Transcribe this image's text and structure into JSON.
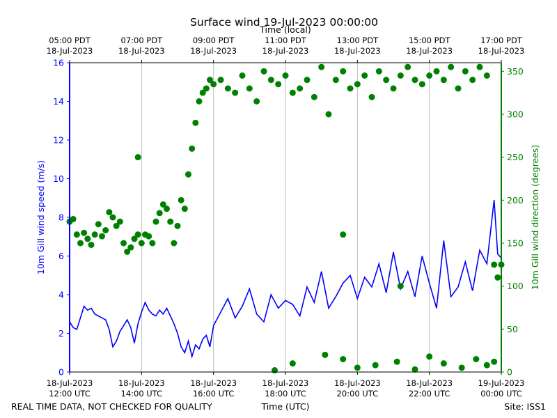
{
  "chart_data": {
    "type": "line",
    "title": "Surface wind 19-Jul-2023 00:00:00",
    "top_axis_label": "Time (local)",
    "xlabel": "Time (UTC)",
    "ylabel_left": "10m Gill wind speed (m/s)",
    "ylabel_right": "10m Gill wind direction (degrees)",
    "ylim_left": [
      0,
      16
    ],
    "ylim_right": [
      0,
      360
    ],
    "xlim_hours_utc": [
      "2023-07-18 12:00",
      "2023-07-19 00:00"
    ],
    "grid": "vertical only",
    "footer_left": "REAL TIME DATA, NOT CHECKED FOR QUALITY",
    "footer_right": "Site: ISS1",
    "bottom_ticks": [
      {
        "line1": "18-Jul-2023",
        "line2": "12:00 UTC"
      },
      {
        "line1": "18-Jul-2023",
        "line2": "14:00 UTC"
      },
      {
        "line1": "18-Jul-2023",
        "line2": "16:00 UTC"
      },
      {
        "line1": "18-Jul-2023",
        "line2": "18:00 UTC"
      },
      {
        "line1": "18-Jul-2023",
        "line2": "20:00 UTC"
      },
      {
        "line1": "18-Jul-2023",
        "line2": "22:00 UTC"
      },
      {
        "line1": "19-Jul-2023",
        "line2": "00:00 UTC"
      }
    ],
    "top_ticks": [
      {
        "line1": "05:00 PDT",
        "line2": "18-Jul-2023"
      },
      {
        "line1": "07:00 PDT",
        "line2": "18-Jul-2023"
      },
      {
        "line1": "09:00 PDT",
        "line2": "18-Jul-2023"
      },
      {
        "line1": "11:00 PDT",
        "line2": "18-Jul-2023"
      },
      {
        "line1": "13:00 PDT",
        "line2": "18-Jul-2023"
      },
      {
        "line1": "15:00 PDT",
        "line2": "18-Jul-2023"
      },
      {
        "line1": "17:00 PDT",
        "line2": "18-Jul-2023"
      }
    ],
    "left_ticks": [
      0,
      2,
      4,
      6,
      8,
      10,
      12,
      14,
      16
    ],
    "right_ticks": [
      0,
      50,
      100,
      150,
      200,
      250,
      300,
      350
    ],
    "colors": {
      "speed": "#0000ff",
      "direction": "#008000",
      "grid": "#b0b0b0"
    },
    "series": [
      {
        "name": "10m Gill wind speed (m/s)",
        "axis": "left",
        "style": "line",
        "x_hours_since_12utc": [
          0.0,
          0.1,
          0.2,
          0.3,
          0.4,
          0.5,
          0.6,
          0.7,
          0.8,
          0.9,
          1.0,
          1.1,
          1.2,
          1.3,
          1.4,
          1.5,
          1.6,
          1.7,
          1.8,
          1.9,
          2.0,
          2.1,
          2.2,
          2.3,
          2.4,
          2.5,
          2.6,
          2.7,
          2.8,
          2.9,
          3.0,
          3.1,
          3.2,
          3.3,
          3.4,
          3.5,
          3.6,
          3.7,
          3.8,
          3.9,
          4.0,
          4.2,
          4.4,
          4.6,
          4.8,
          5.0,
          5.2,
          5.4,
          5.6,
          5.8,
          6.0,
          6.2,
          6.4,
          6.6,
          6.8,
          7.0,
          7.2,
          7.4,
          7.6,
          7.8,
          8.0,
          8.2,
          8.4,
          8.6,
          8.8,
          9.0,
          9.2,
          9.4,
          9.6,
          9.8,
          10.0,
          10.2,
          10.4,
          10.6,
          10.8,
          11.0,
          11.2,
          11.4,
          11.6,
          11.8,
          11.9,
          12.0
        ],
        "values": [
          2.6,
          2.3,
          2.2,
          2.8,
          3.4,
          3.2,
          3.3,
          3.0,
          2.9,
          2.8,
          2.7,
          2.2,
          1.3,
          1.6,
          2.1,
          2.4,
          2.7,
          2.3,
          1.5,
          2.5,
          3.1,
          3.6,
          3.2,
          3.0,
          2.9,
          3.2,
          3.0,
          3.3,
          2.9,
          2.5,
          2.0,
          1.3,
          1.0,
          1.6,
          0.8,
          1.4,
          1.2,
          1.7,
          1.9,
          1.3,
          2.4,
          3.1,
          3.8,
          2.8,
          3.4,
          4.3,
          3.0,
          2.6,
          4.0,
          3.3,
          3.7,
          3.5,
          2.9,
          4.4,
          3.6,
          5.2,
          3.3,
          3.9,
          4.6,
          5.0,
          3.8,
          4.9,
          4.4,
          5.6,
          4.1,
          6.2,
          4.3,
          5.2,
          3.9,
          6.0,
          4.6,
          3.3,
          6.8,
          3.9,
          4.4,
          5.7,
          4.2,
          6.3,
          5.6,
          8.9,
          6.1,
          5.9
        ]
      },
      {
        "name": "10m Gill wind direction (degrees)",
        "axis": "right",
        "style": "scatter",
        "x_hours_since_12utc": [
          0.0,
          0.1,
          0.2,
          0.3,
          0.4,
          0.5,
          0.6,
          0.7,
          0.8,
          0.9,
          1.0,
          1.1,
          1.2,
          1.3,
          1.4,
          1.5,
          1.6,
          1.7,
          1.8,
          1.9,
          2.0,
          2.1,
          2.2,
          2.3,
          2.4,
          2.5,
          2.6,
          2.7,
          2.8,
          2.9,
          3.0,
          3.1,
          3.2,
          3.3,
          3.4,
          3.5,
          3.6,
          3.7,
          3.8,
          3.9,
          4.0,
          4.2,
          4.4,
          4.6,
          4.8,
          5.0,
          5.2,
          5.4,
          5.6,
          5.8,
          6.0,
          6.2,
          6.4,
          6.6,
          6.8,
          7.0,
          7.2,
          7.4,
          7.6,
          7.8,
          8.0,
          8.2,
          8.4,
          8.6,
          8.8,
          9.0,
          9.2,
          9.4,
          9.6,
          9.8,
          10.0,
          10.2,
          10.4,
          10.6,
          10.8,
          11.0,
          11.2,
          11.4,
          11.6,
          11.8,
          11.9,
          12.0,
          5.7,
          6.2,
          7.1,
          7.6,
          8.0,
          8.5,
          9.1,
          9.6,
          10.0,
          10.4,
          10.9,
          11.3,
          11.6,
          11.8,
          1.9,
          7.6,
          9.2
        ],
        "values": [
          175,
          178,
          160,
          150,
          162,
          155,
          148,
          160,
          172,
          158,
          165,
          186,
          180,
          170,
          175,
          150,
          140,
          145,
          155,
          160,
          150,
          160,
          158,
          150,
          175,
          185,
          195,
          190,
          175,
          150,
          170,
          200,
          190,
          230,
          260,
          290,
          315,
          325,
          330,
          340,
          335,
          340,
          330,
          325,
          345,
          330,
          315,
          350,
          340,
          335,
          345,
          325,
          330,
          340,
          320,
          355,
          300,
          340,
          350,
          330,
          335,
          345,
          320,
          350,
          340,
          330,
          345,
          355,
          340,
          335,
          345,
          350,
          340,
          355,
          330,
          350,
          340,
          355,
          345,
          125,
          110,
          125,
          2,
          10,
          20,
          15,
          5,
          8,
          12,
          3,
          18,
          10,
          5,
          15,
          8,
          12,
          250,
          160,
          100
        ]
      }
    ]
  }
}
